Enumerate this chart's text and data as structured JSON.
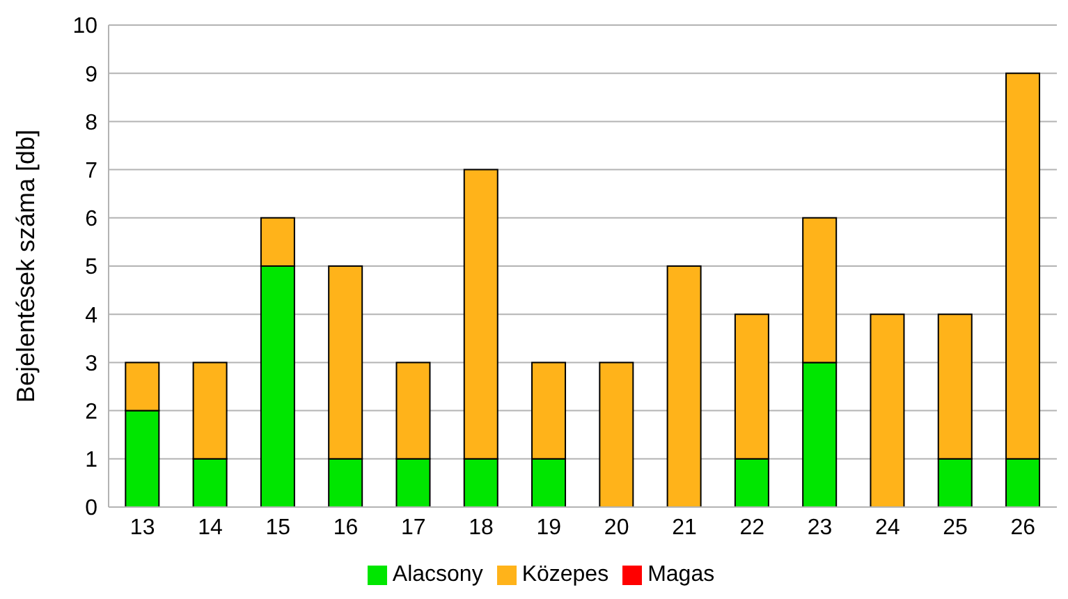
{
  "chart_data": {
    "type": "bar",
    "stacked": true,
    "ylabel": "Bejelentések száma [db]",
    "categories": [
      "13",
      "14",
      "15",
      "16",
      "17",
      "18",
      "19",
      "20",
      "21",
      "22",
      "23",
      "24",
      "25",
      "26"
    ],
    "series": [
      {
        "name": "Alacsony",
        "color": "#00e600",
        "values": [
          2,
          1,
          5,
          1,
          1,
          1,
          1,
          0,
          0,
          1,
          3,
          0,
          1,
          1
        ]
      },
      {
        "name": "Közepes",
        "color": "#ffb31a",
        "values": [
          1,
          2,
          1,
          4,
          2,
          6,
          2,
          3,
          5,
          3,
          3,
          4,
          3,
          8
        ]
      },
      {
        "name": "Magas",
        "color": "#ff0000",
        "values": [
          0,
          0,
          0,
          0,
          0,
          0,
          0,
          0,
          0,
          0,
          0,
          0,
          0,
          0
        ]
      }
    ],
    "ylim": [
      0,
      10
    ],
    "yticks": [
      0,
      1,
      2,
      3,
      4,
      5,
      6,
      7,
      8,
      9,
      10
    ],
    "grid": "y",
    "legend": "bottom"
  }
}
